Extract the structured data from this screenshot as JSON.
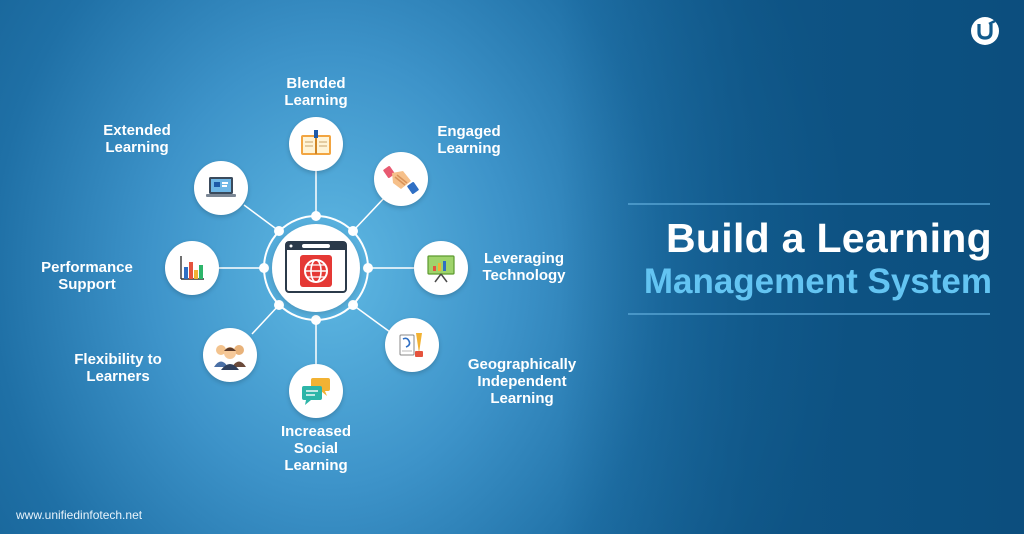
{
  "website": "www.unifiedinfotech.net",
  "logo": {
    "icon": "brand-u-icon"
  },
  "headline": {
    "line1": "Build a Learning",
    "line2": "Management System",
    "line2_color": "#63c4f2"
  },
  "hub": {
    "icon": "browser-globe-icon"
  },
  "features": [
    {
      "key": "blended",
      "label": "Blended\nLearning",
      "icon": "book-icon"
    },
    {
      "key": "engaged",
      "label": "Engaged\nLearning",
      "icon": "handshake-icon"
    },
    {
      "key": "leveraging",
      "label": "Leveraging\nTechnology",
      "icon": "presentation-board-icon"
    },
    {
      "key": "geographically",
      "label": "Geographically\nIndependent\nLearning",
      "icon": "writing-tools-icon"
    },
    {
      "key": "social",
      "label": "Increased\nSocial\nLearning",
      "icon": "chat-bubbles-icon"
    },
    {
      "key": "flexibility",
      "label": "Flexibility to\nLearners",
      "icon": "people-group-icon"
    },
    {
      "key": "performance",
      "label": "Performance\nSupport",
      "icon": "bar-chart-icon"
    },
    {
      "key": "extended",
      "label": "Extended\nLearning",
      "icon": "laptop-icon"
    }
  ]
}
